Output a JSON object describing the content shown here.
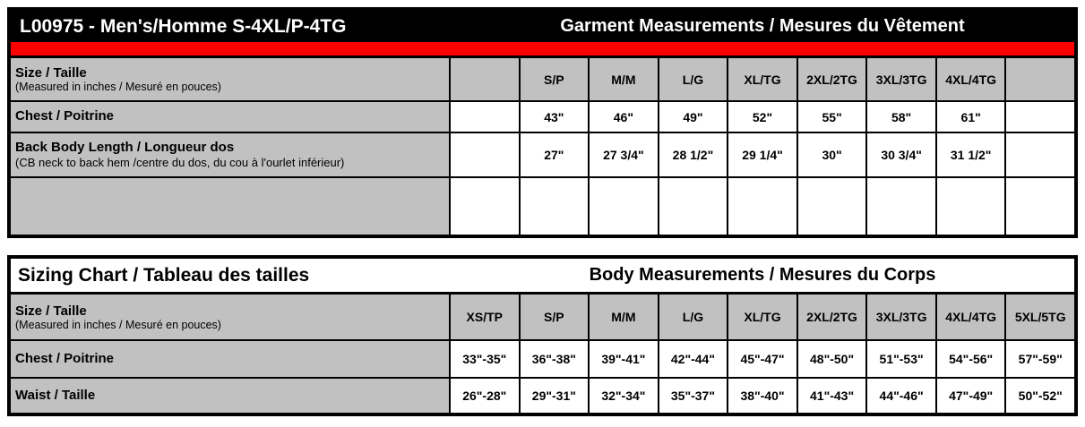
{
  "colors": {
    "accent_red": "#ff0000",
    "header_black": "#000000",
    "cell_gray": "#c1c1c1"
  },
  "garment_table": {
    "title_left": "L00975 - Men's/Homme S-4XL/P-4TG",
    "title_right": "Garment Measurements / Mesures du Vêtement",
    "size_label": "Size / Taille",
    "size_note": "(Measured in inches / Mesuré en pouces)",
    "header_cells": [
      "",
      "S/P",
      "M/M",
      "L/G",
      "XL/TG",
      "2XL/2TG",
      "3XL/3TG",
      "4XL/4TG",
      ""
    ],
    "rows": [
      {
        "label": "Chest / Poitrine",
        "note": "",
        "values": [
          "",
          "43\"",
          "46\"",
          "49\"",
          "52\"",
          "55\"",
          "58\"",
          "61\"",
          ""
        ]
      },
      {
        "label": "Back Body Length / Longueur dos",
        "note": "(CB neck to back hem /centre du dos, du cou à l'ourlet inférieur)",
        "values": [
          "",
          "27\"",
          "27 3/4\"",
          "28 1/2\"",
          "29 1/4\"",
          "30\"",
          "30 3/4\"",
          "31 1/2\"",
          ""
        ]
      },
      {
        "label": "",
        "note": "",
        "values": [
          "",
          "",
          "",
          "",
          "",
          "",
          "",
          "",
          ""
        ]
      }
    ]
  },
  "sizing_table": {
    "title_left": "Sizing Chart / Tableau des tailles",
    "title_right": "Body Measurements / Mesures du Corps",
    "size_label": "Size / Taille",
    "size_note": "(Measured in inches / Mesuré en pouces)",
    "header_cells": [
      "XS/TP",
      "S/P",
      "M/M",
      "L/G",
      "XL/TG",
      "2XL/2TG",
      "3XL/3TG",
      "4XL/4TG",
      "5XL/5TG"
    ],
    "rows": [
      {
        "label": "Chest / Poitrine",
        "values": [
          "33\"-35\"",
          "36\"-38\"",
          "39\"-41\"",
          "42\"-44\"",
          "45\"-47\"",
          "48\"-50\"",
          "51\"-53\"",
          "54\"-56\"",
          "57\"-59\""
        ]
      },
      {
        "label": "Waist / Taille",
        "values": [
          "26\"-28\"",
          "29\"-31\"",
          "32\"-34\"",
          "35\"-37\"",
          "38\"-40\"",
          "41\"-43\"",
          "44\"-46\"",
          "47\"-49\"",
          "50\"-52\""
        ]
      }
    ]
  }
}
